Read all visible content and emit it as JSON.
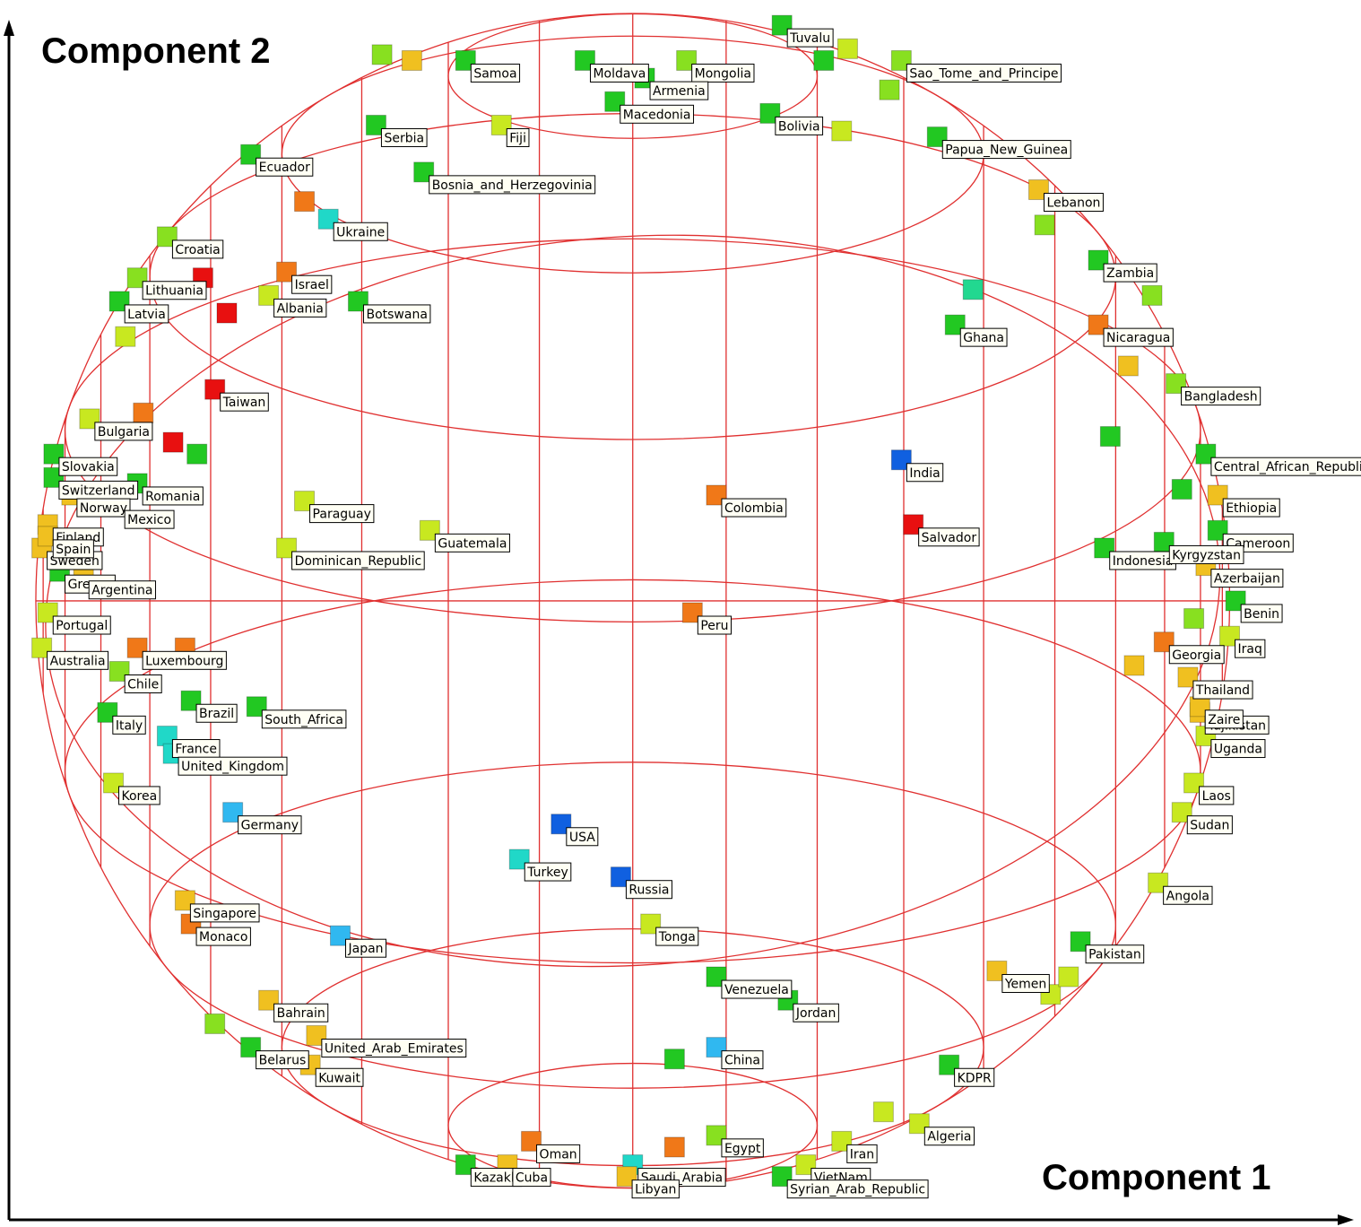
{
  "chart_data": {
    "type": "scatter",
    "x_label": "Component 1",
    "y_label": "Component 2",
    "xlim": [
      -1.06,
      1.22
    ],
    "ylim": [
      -1.066,
      1.023
    ],
    "labels": [
      "Tuvalu",
      "Samoa",
      "Moldava",
      "Mongolia",
      "Armenia",
      "Sao_Tome_and_Principe",
      "Macedonia",
      "Bolivia",
      "Serbia",
      "Fiji",
      "Papua_New_Guinea",
      "Ecuador",
      "Bosnia_and_Herzegovinia",
      "Lebanon",
      "Ukraine",
      "Croatia",
      "Zambia",
      "Israel",
      "Lithuania",
      "Albania",
      "Latvia",
      "Botswana",
      "Ghana",
      "Nicaragua",
      "Taiwan",
      "Bangladesh",
      "Bulgaria",
      "Slovakia",
      "India",
      "Central_African_Republic",
      "Switzerland",
      "Romania",
      "Colombia",
      "Norway",
      "Ethiopia",
      "Paraguay",
      "Mexico",
      "Finland",
      "Salvador",
      "Guatemala",
      "Cameroon",
      "Sweden",
      "Indonesia",
      "Kyrgyzstan",
      "Dominican_Republic",
      "Greece",
      "Azerbaijan",
      "Argentina",
      "Benin",
      "Peru",
      "Portugal",
      "Georgia",
      "Iraq",
      "Australia",
      "Luxembourg",
      "Chile",
      "Thailand",
      "Brazil",
      "South_Africa",
      "Tajikistan",
      "Italy",
      "Uganda",
      "France",
      "United_Kingdom",
      "Korea",
      "Laos",
      "Germany",
      "Sudan",
      "USA",
      "Turkey",
      "Russia",
      "Angola",
      "Singapore",
      "Monaco",
      "Tonga",
      "Japan",
      "Pakistan",
      "Yemen",
      "Venezuela",
      "Jordan",
      "Bahrain",
      "United_Arab_Emirates",
      "China",
      "Belarus",
      "KDPR",
      "Kuwait",
      "Algeria",
      "Egypt",
      "Oman",
      "Iran",
      "Saudi_Arabia",
      "Kazakh",
      "Cuba",
      "VietNam",
      "Libyan",
      "Syrian_Arab_Republic",
      "Spain",
      "Zaire",
      null,
      null,
      null,
      null,
      null,
      null,
      null,
      null,
      null,
      null,
      null,
      null,
      null,
      null,
      null,
      null,
      null,
      null,
      null,
      null,
      null,
      null,
      null,
      null,
      null,
      null,
      null,
      null
    ],
    "x": [
      0.25,
      -0.28,
      -0.08,
      0.09,
      0.02,
      0.45,
      -0.03,
      0.23,
      -0.43,
      -0.22,
      0.51,
      -0.64,
      -0.35,
      0.68,
      -0.51,
      -0.78,
      0.78,
      -0.58,
      -0.83,
      -0.61,
      -0.86,
      -0.46,
      0.54,
      0.78,
      -0.7,
      0.91,
      -0.91,
      -0.97,
      0.45,
      0.96,
      -0.97,
      -0.83,
      0.14,
      -0.94,
      0.98,
      -0.55,
      -0.86,
      -0.98,
      0.47,
      -0.34,
      0.98,
      -0.99,
      0.79,
      0.89,
      -0.58,
      -0.96,
      0.96,
      -0.92,
      1.01,
      0.1,
      -0.98,
      0.89,
      1.0,
      -0.99,
      -0.83,
      -0.86,
      0.93,
      -0.74,
      -0.63,
      0.95,
      -0.88,
      0.96,
      -0.78,
      -0.77,
      -0.87,
      0.94,
      -0.67,
      0.92,
      -0.12,
      -0.19,
      -0.02,
      0.88,
      -0.75,
      -0.74,
      0.03,
      -0.49,
      0.75,
      0.61,
      0.14,
      0.26,
      -0.61,
      -0.53,
      0.14,
      -0.64,
      0.53,
      -0.54,
      0.48,
      0.14,
      -0.17,
      0.35,
      0.0,
      -0.28,
      -0.21,
      0.29,
      -0.01,
      0.25,
      -0.98,
      0.95,
      -0.42,
      -0.37,
      0.32,
      0.36,
      0.43,
      0.35,
      -0.55,
      0.69,
      -0.72,
      -0.68,
      0.57,
      -0.85,
      -0.77,
      -0.73,
      -0.82,
      0.8,
      0.92,
      0.94,
      0.84,
      0.07,
      0.42,
      0.07,
      0.7,
      0.73,
      -0.7,
      -0.75,
      0.83,
      0.87
    ],
    "values": [
      0.98,
      0.92,
      0.92,
      0.92,
      0.89,
      0.92,
      0.85,
      0.83,
      0.81,
      0.81,
      0.79,
      0.76,
      0.73,
      0.7,
      0.65,
      0.62,
      0.58,
      0.56,
      0.55,
      0.52,
      0.51,
      0.51,
      0.47,
      0.47,
      0.36,
      0.37,
      0.31,
      0.25,
      0.24,
      0.25,
      0.21,
      0.2,
      0.18,
      0.18,
      0.18,
      0.17,
      0.16,
      0.13,
      0.13,
      0.12,
      0.12,
      0.09,
      0.09,
      0.1,
      0.09,
      0.05,
      0.06,
      0.04,
      0.0,
      -0.02,
      -0.02,
      -0.07,
      -0.06,
      -0.08,
      -0.08,
      -0.12,
      -0.13,
      -0.17,
      -0.18,
      -0.19,
      -0.19,
      -0.23,
      -0.23,
      -0.26,
      -0.31,
      -0.31,
      -0.36,
      -0.36,
      -0.38,
      -0.44,
      -0.47,
      -0.48,
      -0.51,
      -0.55,
      -0.55,
      -0.57,
      -0.58,
      -0.63,
      -0.64,
      -0.68,
      -0.68,
      -0.74,
      -0.76,
      -0.76,
      -0.79,
      -0.79,
      -0.89,
      -0.91,
      -0.92,
      -0.92,
      -0.96,
      -0.96,
      -0.96,
      -0.96,
      -0.98,
      -0.98,
      0.11,
      -0.18,
      0.93,
      0.92,
      0.92,
      0.94,
      0.87,
      0.8,
      0.68,
      0.64,
      0.55,
      0.49,
      0.53,
      0.45,
      0.27,
      0.25,
      0.32,
      0.28,
      0.19,
      -0.03,
      -0.11,
      -0.78,
      -0.87,
      -0.93,
      -0.67,
      -0.64,
      -0.72,
      -0.08,
      0.4,
      0.52
    ],
    "colors": [
      "#22c822",
      "#22c822",
      "#22c822",
      "#88e020",
      "#22c822",
      "#88e020",
      "#22c822",
      "#22c822",
      "#22c822",
      "#c8e820",
      "#22c822",
      "#22c822",
      "#22c822",
      "#f0c020",
      "#20d8c8",
      "#88e020",
      "#22c822",
      "#f07818",
      "#88e020",
      "#c8e820",
      "#22c822",
      "#22c822",
      "#22c822",
      "#f07818",
      "#e81010",
      "#88e020",
      "#c8e820",
      "#22c822",
      "#1060e0",
      "#22c822",
      "#22c822",
      "#22c822",
      "#f07818",
      "#f0c020",
      "#f0c020",
      "#c8e820",
      "#22c822",
      "#f0c020",
      "#e81010",
      "#c8e820",
      "#22c822",
      "#f0c020",
      "#22c822",
      "#22c822",
      "#c8e820",
      "#22c822",
      "#f0c020",
      "#f0c020",
      "#22c822",
      "#f07818",
      "#c8e820",
      "#f07818",
      "#c8e820",
      "#c8e820",
      "#f07818",
      "#88e020",
      "#f0c020",
      "#22c822",
      "#22c822",
      "#f0c020",
      "#22c822",
      "#c8e820",
      "#20d8c8",
      "#20d8c8",
      "#c8e820",
      "#c8e820",
      "#30b8f0",
      "#c8e820",
      "#1060e0",
      "#20d8c8",
      "#1060e0",
      "#c8e820",
      "#f0c020",
      "#f07818",
      "#c8e820",
      "#30b8f0",
      "#22c822",
      "#f0c020",
      "#22c822",
      "#22c822",
      "#f0c020",
      "#f0c020",
      "#30b8f0",
      "#22c822",
      "#22c822",
      "#f0c020",
      "#c8e820",
      "#88e020",
      "#f07818",
      "#c8e820",
      "#20d8c8",
      "#22c822",
      "#f0c020",
      "#c8e820",
      "#f0c020",
      "#22c822",
      "#f0c020",
      "#f0c020",
      "#88e020",
      "#f0c020",
      "#22c822",
      "#c8e820",
      "#88e020",
      "#c8e820",
      "#f07818",
      "#88e020",
      "#e81010",
      "#e81010",
      "#22d890",
      "#c8e820",
      "#e81010",
      "#22c822",
      "#f07818",
      "#22c822",
      "#22c822",
      "#88e020",
      "#f0c020",
      "#22c822",
      "#c8e820",
      "#f07818",
      "#c8e820",
      "#c8e820",
      "#88e020",
      "#f07818",
      "#f0c020",
      "#88e020"
    ]
  }
}
